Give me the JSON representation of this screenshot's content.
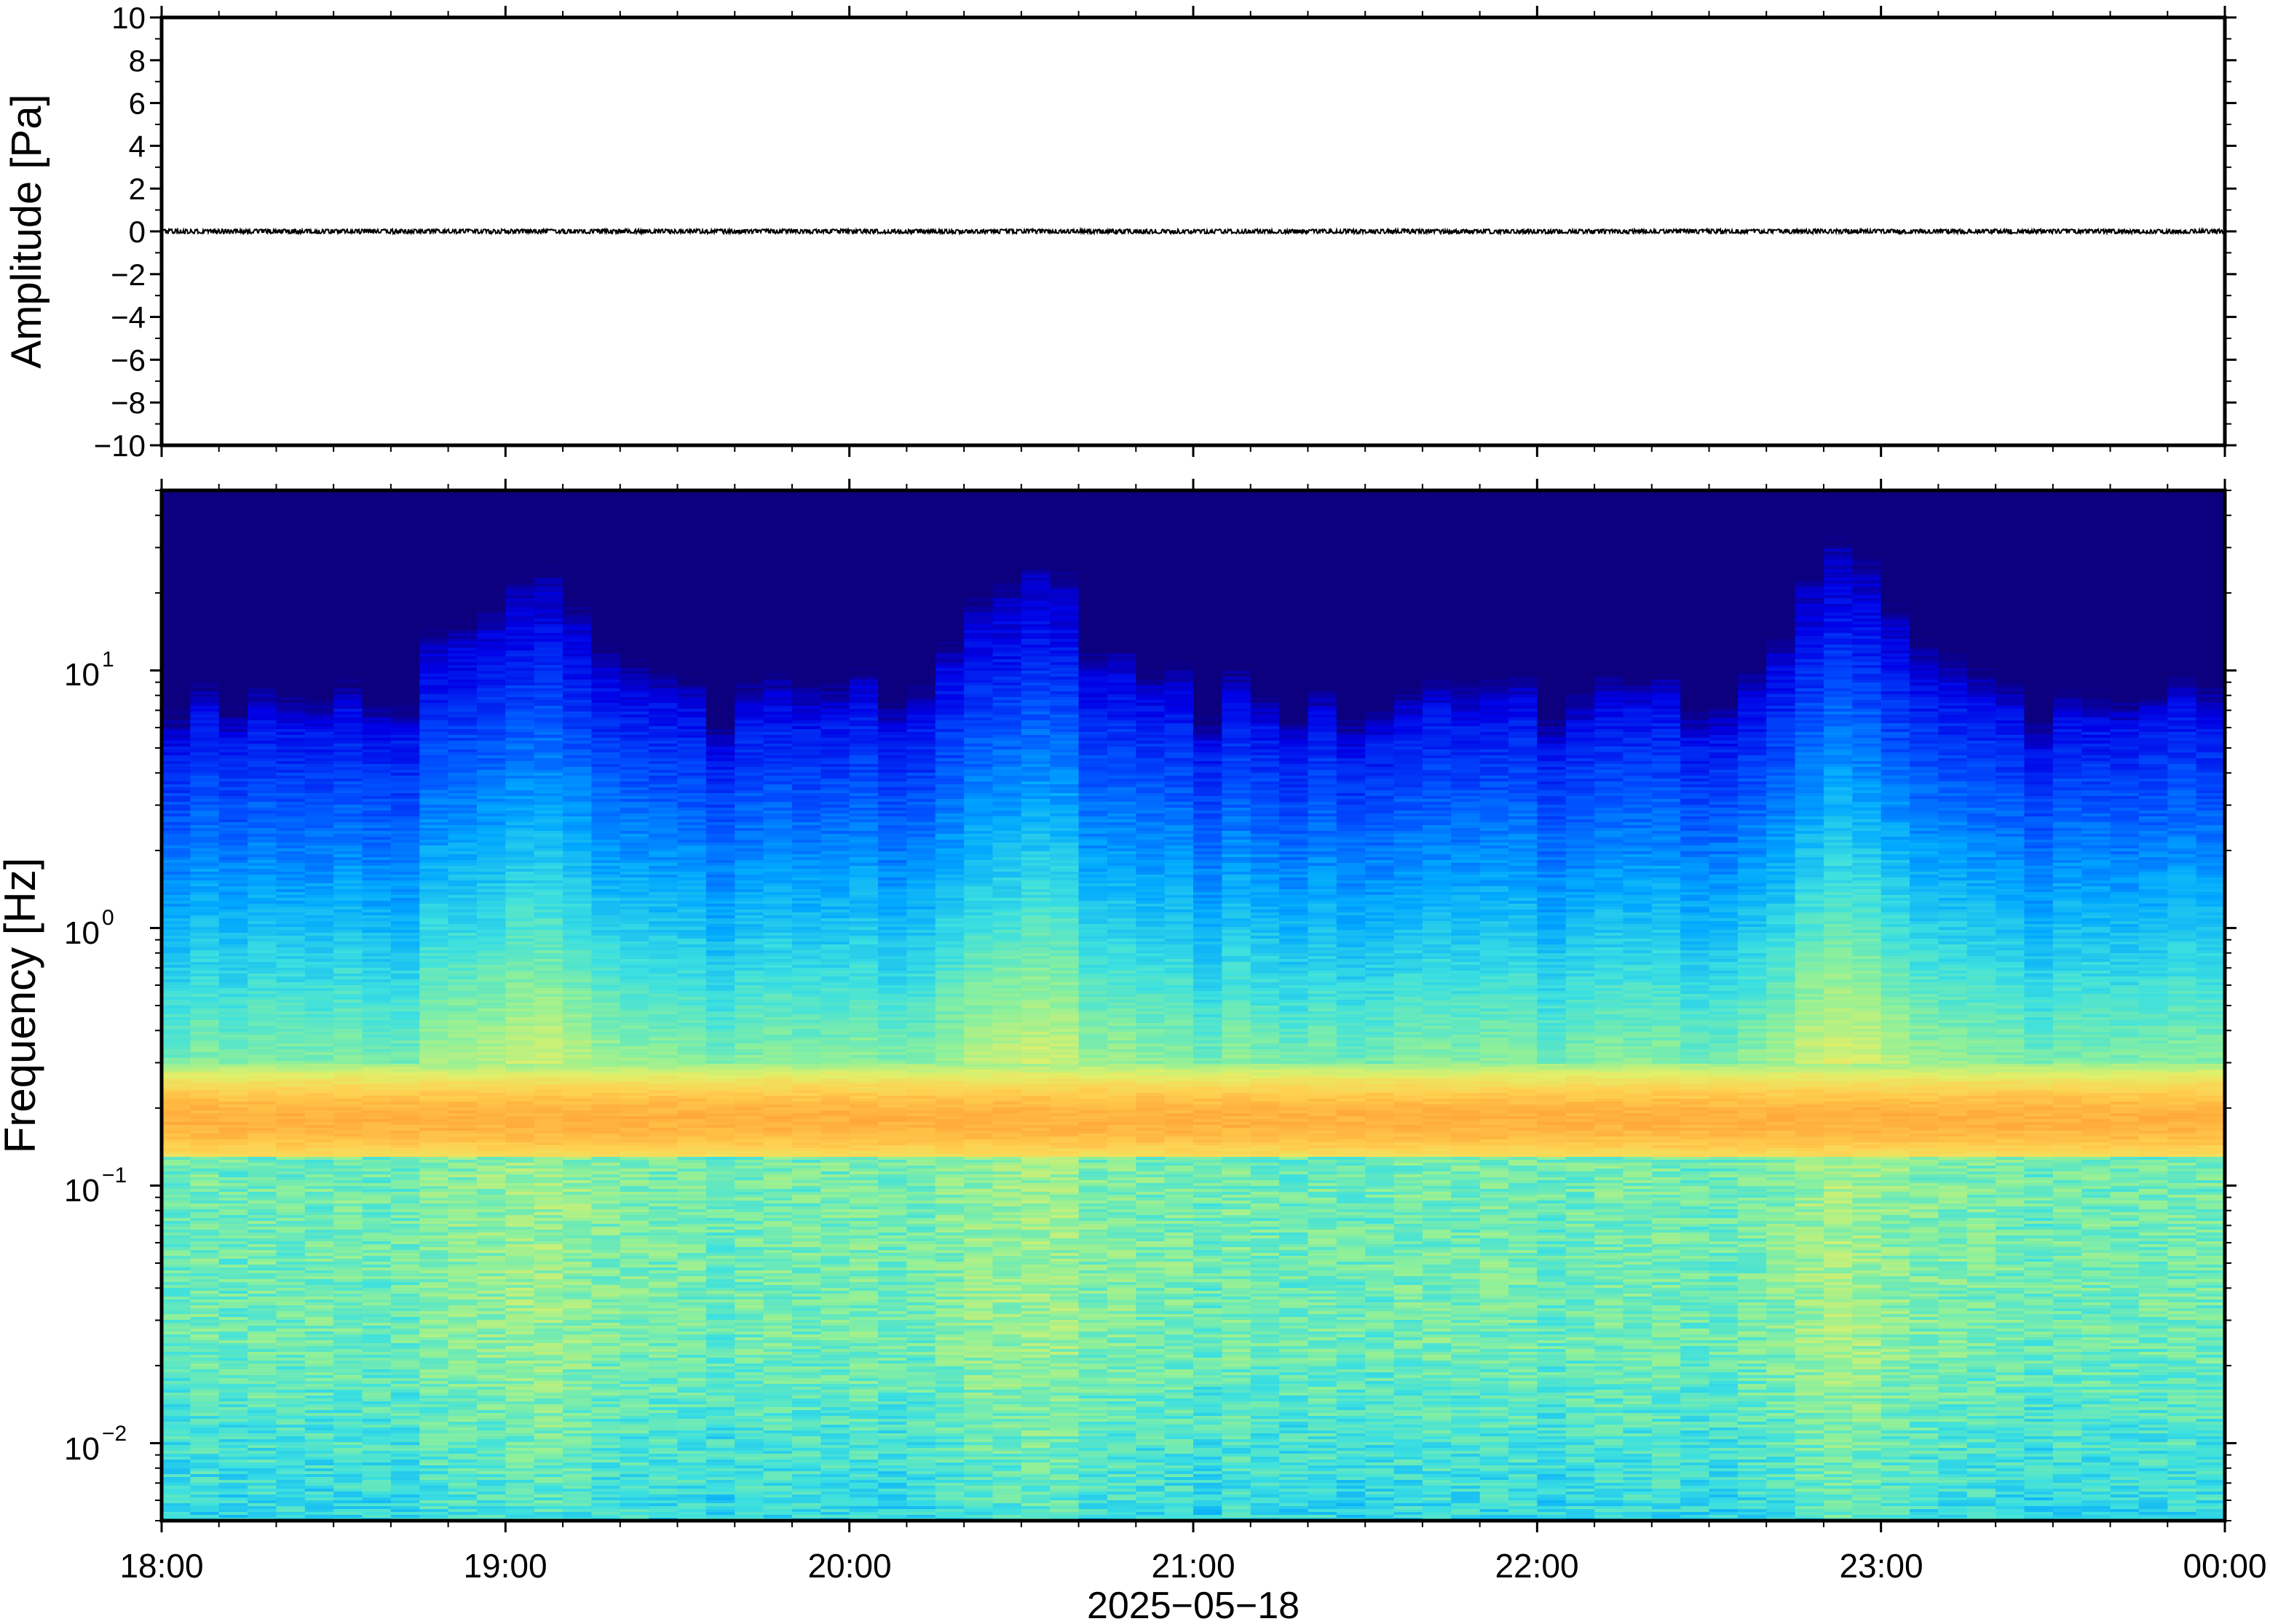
{
  "chart_data": [
    {
      "type": "line",
      "ylabel": "Amplitude [Pa]",
      "ylim": [
        -10,
        10
      ],
      "yticks": [
        10,
        8,
        6,
        4,
        2,
        0,
        -2,
        -4,
        -6,
        -8,
        -10
      ],
      "ytick_labels": [
        "10",
        "8",
        "6",
        "4",
        "2",
        "0",
        "−2",
        "−4",
        "−6",
        "−8",
        "−10"
      ],
      "x_range": [
        "2025-05-18 18:00",
        "2025-05-19 00:00"
      ],
      "series": [
        {
          "x_start": "2025-05-18 18:00",
          "x_end": "2025-05-19 00:00",
          "typical_amplitude_pa": 0.1,
          "baseline_pa": 0.0
        }
      ],
      "line_color": "#000000"
    },
    {
      "type": "heatmap",
      "xlabel": "2025−05−18",
      "ylabel": "Frequency [Hz]",
      "y_scale": "log",
      "ylim_hz": [
        0.005,
        50
      ],
      "yticks_hz": [
        0.01,
        0.1,
        1,
        10
      ],
      "ytick_labels": [
        {
          "base": "10",
          "exp": "−2"
        },
        {
          "base": "10",
          "exp": "−1"
        },
        {
          "base": "10",
          "exp": "0"
        },
        {
          "base": "10",
          "exp": "1"
        }
      ],
      "x_tick_labels": [
        "18:00",
        "19:00",
        "20:00",
        "21:00",
        "22:00",
        "23:00",
        "00:00"
      ],
      "x_range": [
        "2025-05-18 18:00",
        "2025-05-19 00:00"
      ],
      "colormap": "jet",
      "colormap_stops": [
        "#0c007f",
        "#0000e6",
        "#0050ff",
        "#00a8ff",
        "#3ce0e0",
        "#8ef09a",
        "#e0f06a",
        "#ffd050",
        "#ff9a30"
      ],
      "microseism_band_hz": [
        0.13,
        0.3
      ],
      "microseism_peak_hz": 0.18,
      "high_energy_periods": [
        "18:50-19:20",
        "20:30",
        "22:50-23:00"
      ]
    }
  ]
}
